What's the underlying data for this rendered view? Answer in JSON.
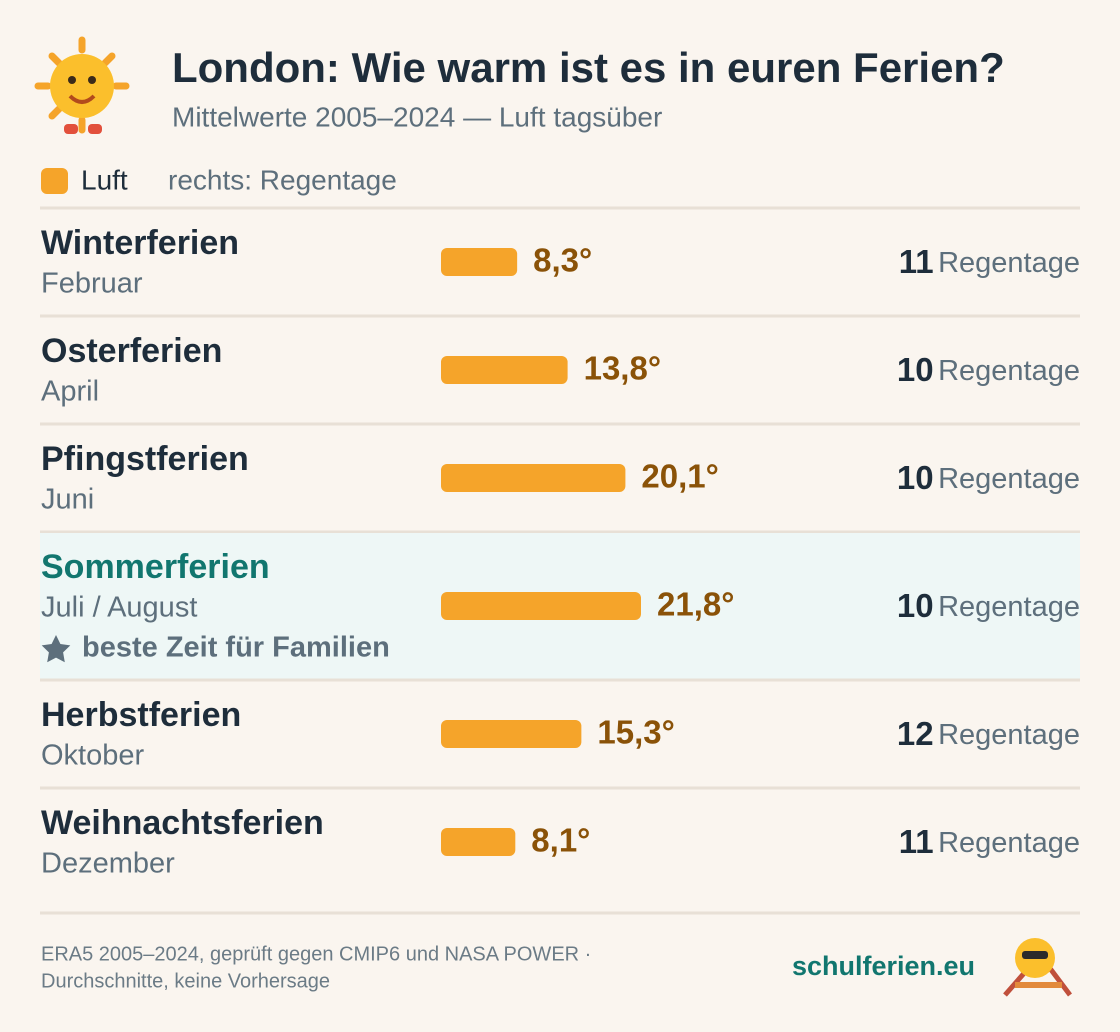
{
  "chart_data": {
    "type": "bar",
    "title": "London: Wie warm ist es in euren Ferien?",
    "subtitle": "Mittelwerte 2005–2024 — Luft tagsüber",
    "legend_note": "rechts: Regentage",
    "categories": [
      "Winterferien",
      "Osterferien",
      "Pfingstferien",
      "Sommerferien",
      "Herbstferien",
      "Weihnachtsferien"
    ],
    "months": [
      "Februar",
      "April",
      "Juni",
      "Juli / August",
      "Oktober",
      "Dezember"
    ],
    "notes": [
      null,
      null,
      null,
      "beste Zeit für Familien",
      null,
      null
    ],
    "series": [
      {
        "name": "Luft",
        "color": "#f5a42a",
        "values": [
          8.3,
          13.8,
          20.1,
          21.8,
          15.3,
          8.1
        ],
        "value_labels": [
          "8,3°",
          "13,8°",
          "20,1°",
          "21,8°",
          "15,3°",
          "8,1°"
        ]
      }
    ],
    "rain_days": [
      11,
      10,
      10,
      10,
      12,
      11
    ],
    "rain_label": "Regentage"
  },
  "footer": {
    "source": [
      "ERA5 2005–2024, geprüft gegen CMIP6 und NASA POWER ·",
      "Durchschnitte, keine Vorhersage"
    ],
    "brand": "schulferien.eu"
  }
}
